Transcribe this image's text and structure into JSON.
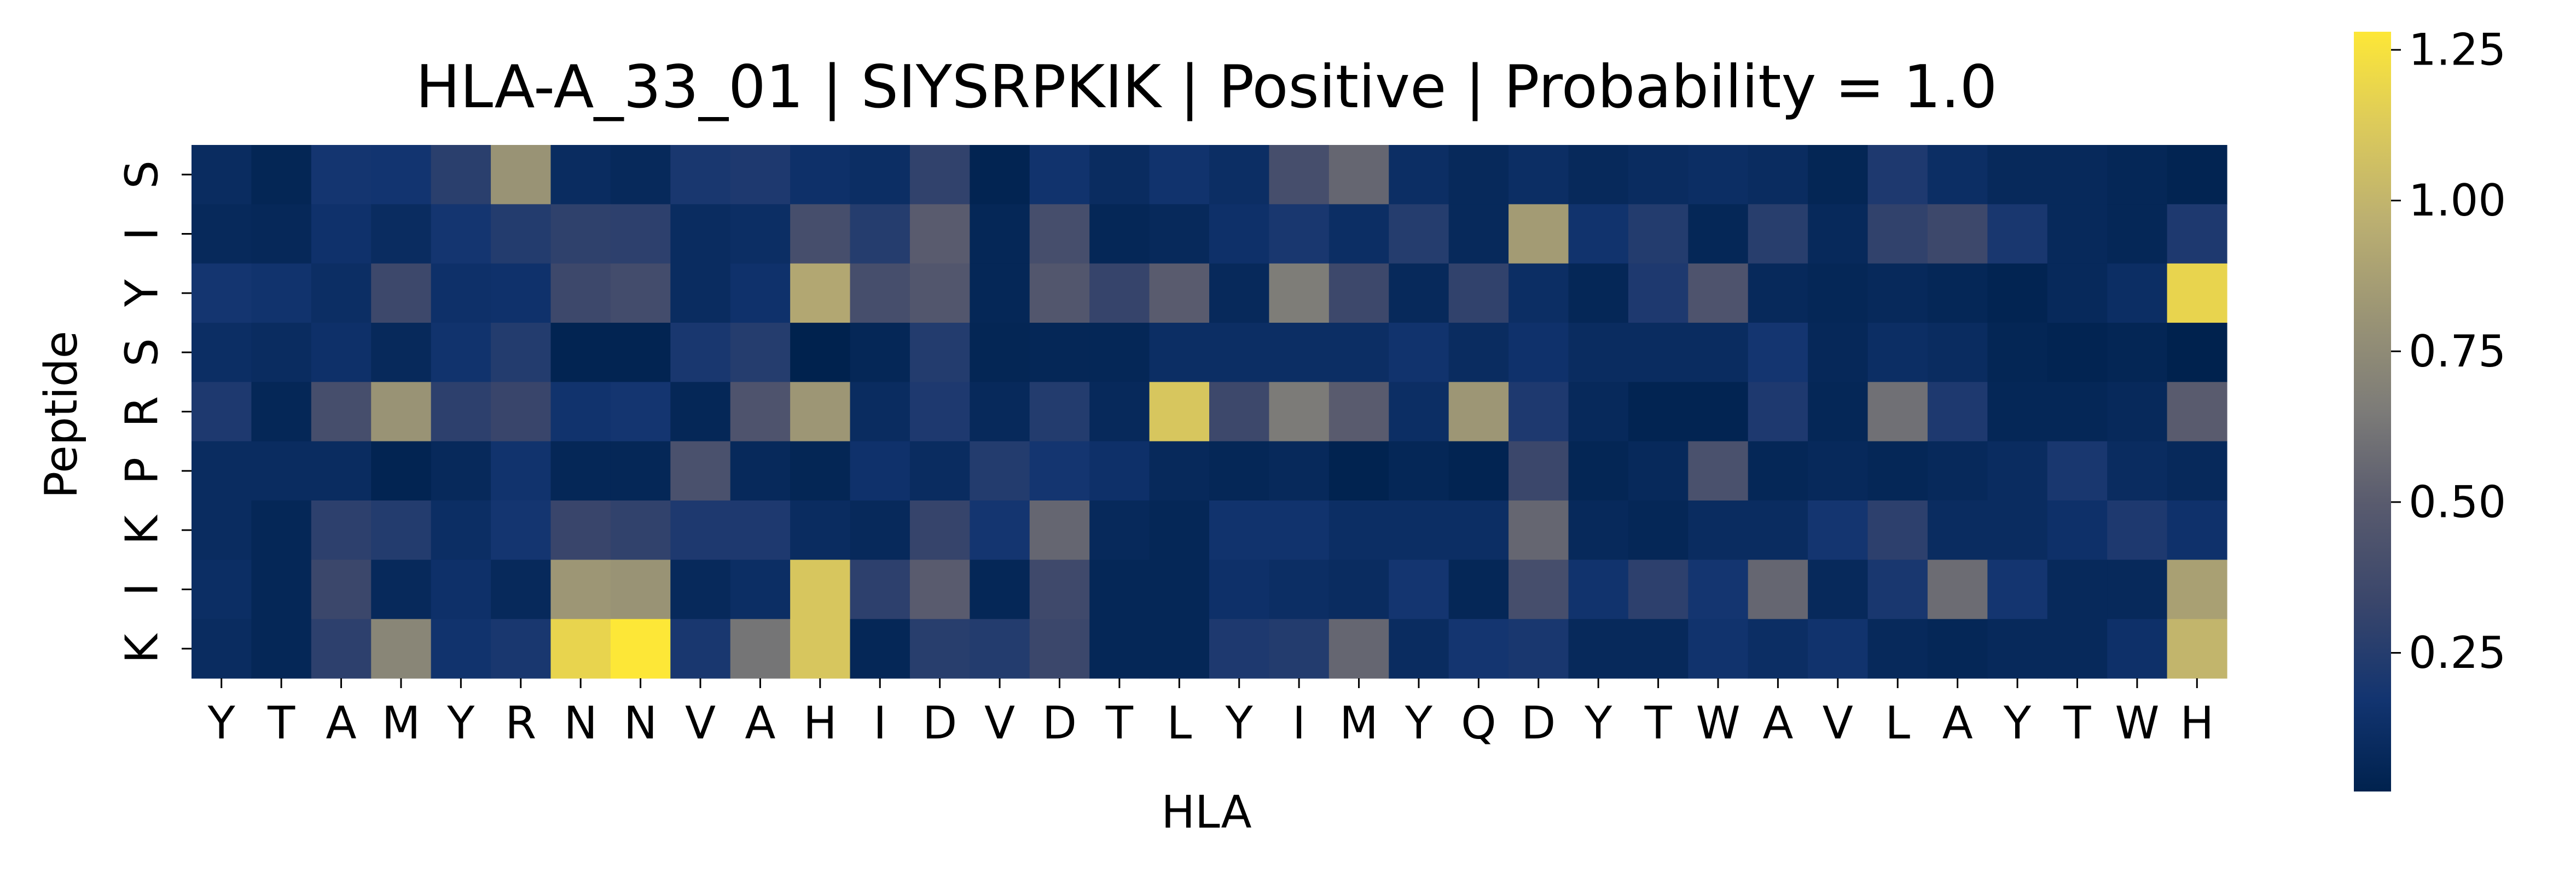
{
  "chart_data": {
    "type": "heatmap",
    "title": "HLA-A_33_01 | SIYSRPKIK | Positive | Probability = 1.0",
    "xlabel": "HLA",
    "ylabel": "Peptide",
    "x_categories": [
      "Y",
      "T",
      "A",
      "M",
      "Y",
      "R",
      "N",
      "N",
      "V",
      "A",
      "H",
      "I",
      "D",
      "V",
      "D",
      "T",
      "L",
      "Y",
      "I",
      "M",
      "Y",
      "Q",
      "D",
      "Y",
      "T",
      "W",
      "A",
      "V",
      "L",
      "A",
      "Y",
      "T",
      "W",
      "H"
    ],
    "y_categories": [
      "S",
      "I",
      "Y",
      "S",
      "R",
      "P",
      "K",
      "I",
      "K"
    ],
    "colormap": "cividis",
    "vmin": 0.02,
    "vmax": 1.28,
    "colorbar_ticks": [
      {
        "value": 0.25,
        "label": "0.25"
      },
      {
        "value": 0.5,
        "label": "0.50"
      },
      {
        "value": 0.75,
        "label": "0.75"
      },
      {
        "value": 1.0,
        "label": "1.00"
      },
      {
        "value": 1.25,
        "label": "1.25"
      }
    ],
    "values": [
      [
        0.1,
        0.05,
        0.18,
        0.17,
        0.27,
        0.8,
        0.1,
        0.08,
        0.2,
        0.22,
        0.14,
        0.12,
        0.3,
        0.04,
        0.16,
        0.1,
        0.16,
        0.12,
        0.4,
        0.55,
        0.12,
        0.08,
        0.12,
        0.08,
        0.1,
        0.12,
        0.1,
        0.05,
        0.22,
        0.12,
        0.08,
        0.08,
        0.06,
        0.04
      ],
      [
        0.08,
        0.07,
        0.15,
        0.1,
        0.18,
        0.24,
        0.29,
        0.28,
        0.1,
        0.12,
        0.4,
        0.25,
        0.5,
        0.06,
        0.4,
        0.06,
        0.08,
        0.14,
        0.2,
        0.12,
        0.25,
        0.08,
        0.85,
        0.16,
        0.24,
        0.06,
        0.26,
        0.08,
        0.3,
        0.35,
        0.2,
        0.08,
        0.06,
        0.22
      ],
      [
        0.18,
        0.16,
        0.12,
        0.35,
        0.14,
        0.15,
        0.35,
        0.38,
        0.1,
        0.15,
        0.92,
        0.4,
        0.46,
        0.06,
        0.46,
        0.32,
        0.5,
        0.08,
        0.66,
        0.35,
        0.08,
        0.3,
        0.12,
        0.06,
        0.22,
        0.44,
        0.08,
        0.06,
        0.08,
        0.06,
        0.04,
        0.08,
        0.12,
        1.18
      ],
      [
        0.12,
        0.1,
        0.14,
        0.08,
        0.16,
        0.24,
        0.04,
        0.04,
        0.2,
        0.25,
        0.02,
        0.06,
        0.24,
        0.05,
        0.06,
        0.06,
        0.12,
        0.12,
        0.12,
        0.12,
        0.16,
        0.1,
        0.15,
        0.1,
        0.1,
        0.1,
        0.18,
        0.07,
        0.12,
        0.1,
        0.05,
        0.04,
        0.05,
        0.02
      ],
      [
        0.22,
        0.06,
        0.4,
        0.8,
        0.28,
        0.33,
        0.16,
        0.18,
        0.06,
        0.44,
        0.82,
        0.1,
        0.22,
        0.08,
        0.24,
        0.08,
        1.1,
        0.35,
        0.65,
        0.5,
        0.12,
        0.82,
        0.22,
        0.08,
        0.04,
        0.04,
        0.22,
        0.06,
        0.6,
        0.22,
        0.06,
        0.06,
        0.08,
        0.5
      ],
      [
        0.1,
        0.1,
        0.1,
        0.04,
        0.08,
        0.16,
        0.06,
        0.06,
        0.42,
        0.08,
        0.05,
        0.15,
        0.1,
        0.24,
        0.18,
        0.14,
        0.08,
        0.06,
        0.08,
        0.03,
        0.06,
        0.04,
        0.34,
        0.05,
        0.08,
        0.42,
        0.06,
        0.08,
        0.06,
        0.08,
        0.1,
        0.2,
        0.1,
        0.08
      ],
      [
        0.1,
        0.06,
        0.28,
        0.24,
        0.12,
        0.18,
        0.33,
        0.3,
        0.22,
        0.22,
        0.1,
        0.08,
        0.32,
        0.18,
        0.55,
        0.08,
        0.06,
        0.16,
        0.16,
        0.12,
        0.12,
        0.12,
        0.55,
        0.08,
        0.06,
        0.1,
        0.1,
        0.18,
        0.28,
        0.1,
        0.1,
        0.14,
        0.22,
        0.15
      ],
      [
        0.12,
        0.06,
        0.34,
        0.08,
        0.14,
        0.08,
        0.82,
        0.8,
        0.08,
        0.12,
        1.1,
        0.28,
        0.5,
        0.06,
        0.36,
        0.06,
        0.06,
        0.14,
        0.12,
        0.1,
        0.18,
        0.06,
        0.4,
        0.16,
        0.28,
        0.18,
        0.55,
        0.08,
        0.2,
        0.58,
        0.18,
        0.08,
        0.08,
        0.88
      ],
      [
        0.1,
        0.06,
        0.28,
        0.72,
        0.16,
        0.2,
        1.18,
        1.28,
        0.2,
        0.62,
        1.1,
        0.06,
        0.26,
        0.24,
        0.34,
        0.06,
        0.06,
        0.22,
        0.24,
        0.55,
        0.1,
        0.18,
        0.2,
        0.08,
        0.08,
        0.16,
        0.12,
        0.16,
        0.08,
        0.06,
        0.08,
        0.08,
        0.14,
        1.0
      ]
    ]
  }
}
